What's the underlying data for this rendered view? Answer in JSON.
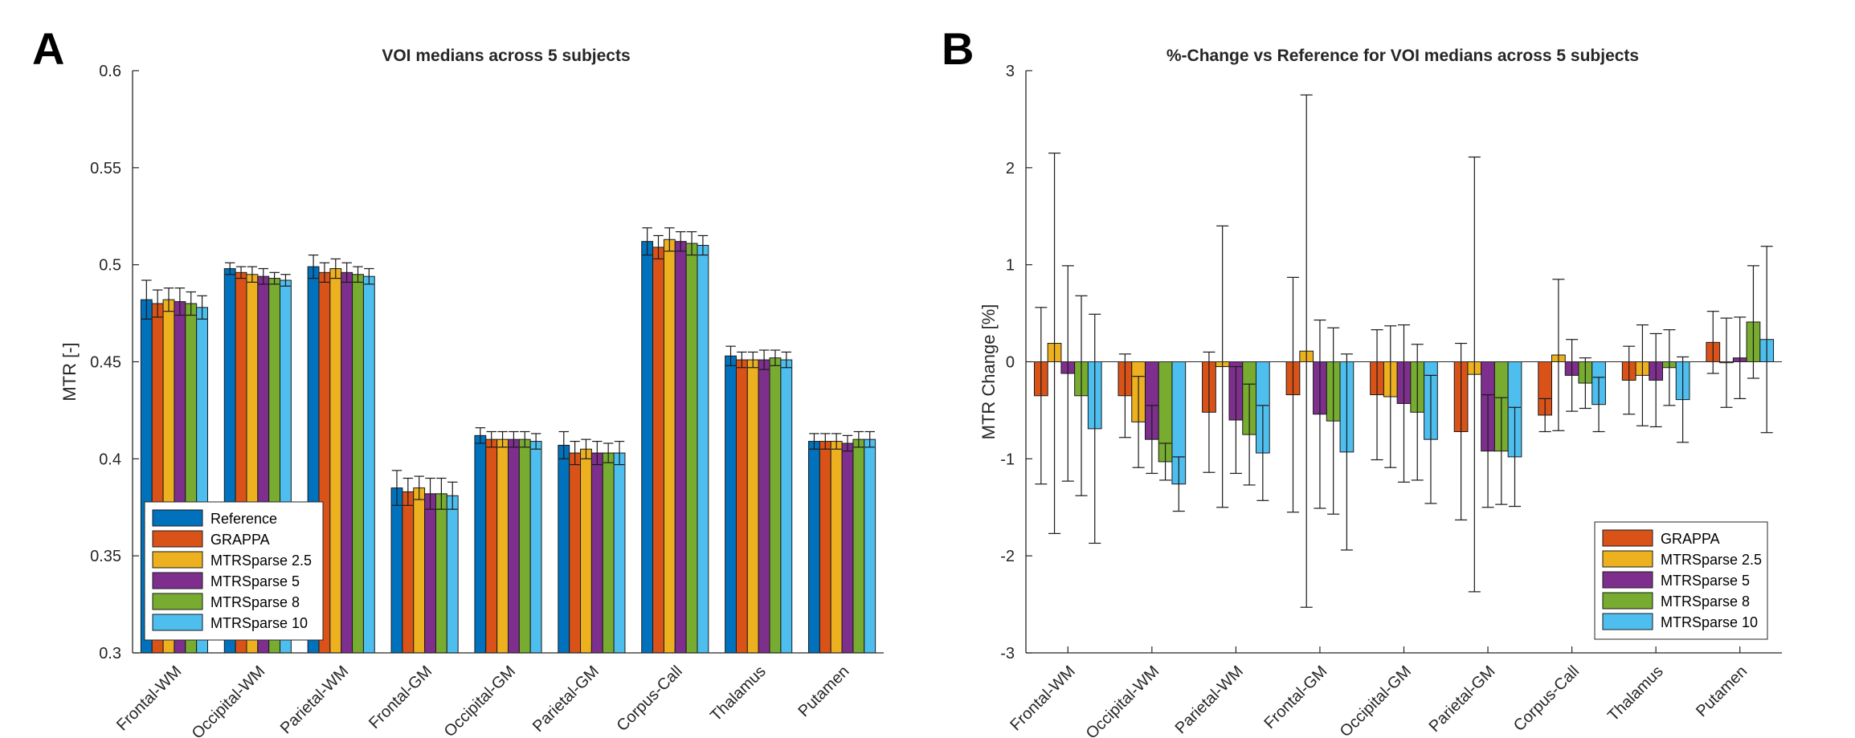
{
  "chart_data": [
    {
      "panel": "A",
      "type": "bar",
      "title": "VOI medians across 5 subjects",
      "xlabel": "",
      "ylabel": "MTR [-]",
      "ylim": [
        0.3,
        0.6
      ],
      "yticks": [
        "0.3",
        "0.35",
        "0.4",
        "0.45",
        "0.5",
        "0.55",
        "0.6"
      ],
      "grid": false,
      "legend_position": "lower-left",
      "categories": [
        "Frontal-WM",
        "Occipital-WM",
        "Parietal-WM",
        "Frontal-GM",
        "Occipital-GM",
        "Parietal-GM",
        "Corpus-Call",
        "Thalamus",
        "Putamen"
      ],
      "series": [
        {
          "name": "Reference",
          "color": "#0072BD",
          "values": [
            0.482,
            0.498,
            0.499,
            0.385,
            0.412,
            0.407,
            0.512,
            0.453,
            0.409
          ],
          "errors": [
            0.01,
            0.003,
            0.006,
            0.009,
            0.004,
            0.007,
            0.007,
            0.005,
            0.004
          ]
        },
        {
          "name": "GRAPPA",
          "color": "#D95319",
          "values": [
            0.48,
            0.496,
            0.496,
            0.383,
            0.41,
            0.403,
            0.509,
            0.451,
            0.409
          ],
          "errors": [
            0.007,
            0.003,
            0.005,
            0.007,
            0.004,
            0.006,
            0.006,
            0.004,
            0.004
          ]
        },
        {
          "name": "MTRSparse 2.5",
          "color": "#EDB120",
          "values": [
            0.482,
            0.495,
            0.498,
            0.385,
            0.41,
            0.405,
            0.513,
            0.451,
            0.409
          ],
          "errors": [
            0.006,
            0.004,
            0.005,
            0.006,
            0.004,
            0.005,
            0.006,
            0.004,
            0.004
          ]
        },
        {
          "name": "MTRSparse 5",
          "color": "#7E2F8E",
          "values": [
            0.481,
            0.494,
            0.496,
            0.382,
            0.41,
            0.403,
            0.512,
            0.451,
            0.408
          ],
          "errors": [
            0.007,
            0.004,
            0.005,
            0.008,
            0.004,
            0.006,
            0.005,
            0.005,
            0.004
          ]
        },
        {
          "name": "MTRSparse 8",
          "color": "#77AC30",
          "values": [
            0.48,
            0.493,
            0.495,
            0.382,
            0.41,
            0.403,
            0.511,
            0.452,
            0.41
          ],
          "errors": [
            0.006,
            0.003,
            0.004,
            0.008,
            0.004,
            0.005,
            0.006,
            0.004,
            0.004
          ]
        },
        {
          "name": "MTRSparse 10",
          "color": "#4DBEEE",
          "values": [
            0.478,
            0.492,
            0.494,
            0.381,
            0.409,
            0.403,
            0.51,
            0.451,
            0.41
          ],
          "errors": [
            0.006,
            0.003,
            0.004,
            0.007,
            0.004,
            0.006,
            0.005,
            0.004,
            0.004
          ]
        }
      ]
    },
    {
      "panel": "B",
      "type": "bar",
      "title": "%-Change vs Reference for VOI medians across 5 subjects",
      "xlabel": "",
      "ylabel": "MTR Change [%]",
      "ylim": [
        -3,
        3
      ],
      "yticks": [
        "-3",
        "-2",
        "-1",
        "0",
        "1",
        "2",
        "3"
      ],
      "grid": false,
      "legend_position": "lower-right",
      "categories": [
        "Frontal-WM",
        "Occipital-WM",
        "Parietal-WM",
        "Frontal-GM",
        "Occipital-GM",
        "Parietal-GM",
        "Corpus-Call",
        "Thalamus",
        "Putamen"
      ],
      "series": [
        {
          "name": "GRAPPA",
          "color": "#D95319",
          "values": [
            -0.35,
            -0.35,
            -0.52,
            -0.34,
            -0.34,
            -0.72,
            -0.55,
            -0.19,
            0.2
          ],
          "errors": [
            0.91,
            0.43,
            0.62,
            1.21,
            0.67,
            0.91,
            0.17,
            0.35,
            0.32
          ]
        },
        {
          "name": "MTRSparse 2.5",
          "color": "#EDB120",
          "values": [
            0.19,
            -0.62,
            -0.05,
            0.11,
            -0.36,
            -0.13,
            0.07,
            -0.14,
            -0.01
          ],
          "errors": [
            1.96,
            0.47,
            1.45,
            2.64,
            0.73,
            2.24,
            0.78,
            0.52,
            0.46
          ]
        },
        {
          "name": "MTRSparse 5",
          "color": "#7E2F8E",
          "values": [
            -0.12,
            -0.8,
            -0.6,
            -0.54,
            -0.43,
            -0.92,
            -0.14,
            -0.19,
            0.04
          ]
        },
        {
          "name": "MTRSparse 8",
          "color": "#77AC30",
          "values": [
            -0.35,
            -1.03,
            -0.75,
            -0.61,
            -0.52,
            -0.92,
            -0.22,
            -0.06,
            0.41
          ]
        },
        {
          "name": "MTRSparse 10",
          "color": "#4DBEEE",
          "values": [
            -0.69,
            -1.26,
            -0.94,
            -0.93,
            -0.8,
            -0.98,
            -0.44,
            -0.39,
            0.23
          ]
        }
      ],
      "errors_by_series": [
        [
          0.91,
          0.43,
          0.62,
          1.21,
          0.67,
          0.91,
          0.17,
          0.35,
          0.32
        ],
        [
          1.96,
          0.47,
          1.45,
          2.64,
          0.73,
          2.24,
          0.78,
          0.52,
          0.46
        ],
        [
          1.11,
          0.35,
          0.55,
          0.97,
          0.81,
          0.58,
          0.37,
          0.48,
          0.42
        ],
        [
          1.03,
          0.19,
          0.52,
          0.96,
          0.7,
          0.55,
          0.26,
          0.39,
          0.58
        ],
        [
          1.18,
          0.28,
          0.49,
          1.01,
          0.66,
          0.51,
          0.28,
          0.44,
          0.96
        ]
      ]
    }
  ],
  "panel_letters": {
    "a": "A",
    "b": "B"
  }
}
